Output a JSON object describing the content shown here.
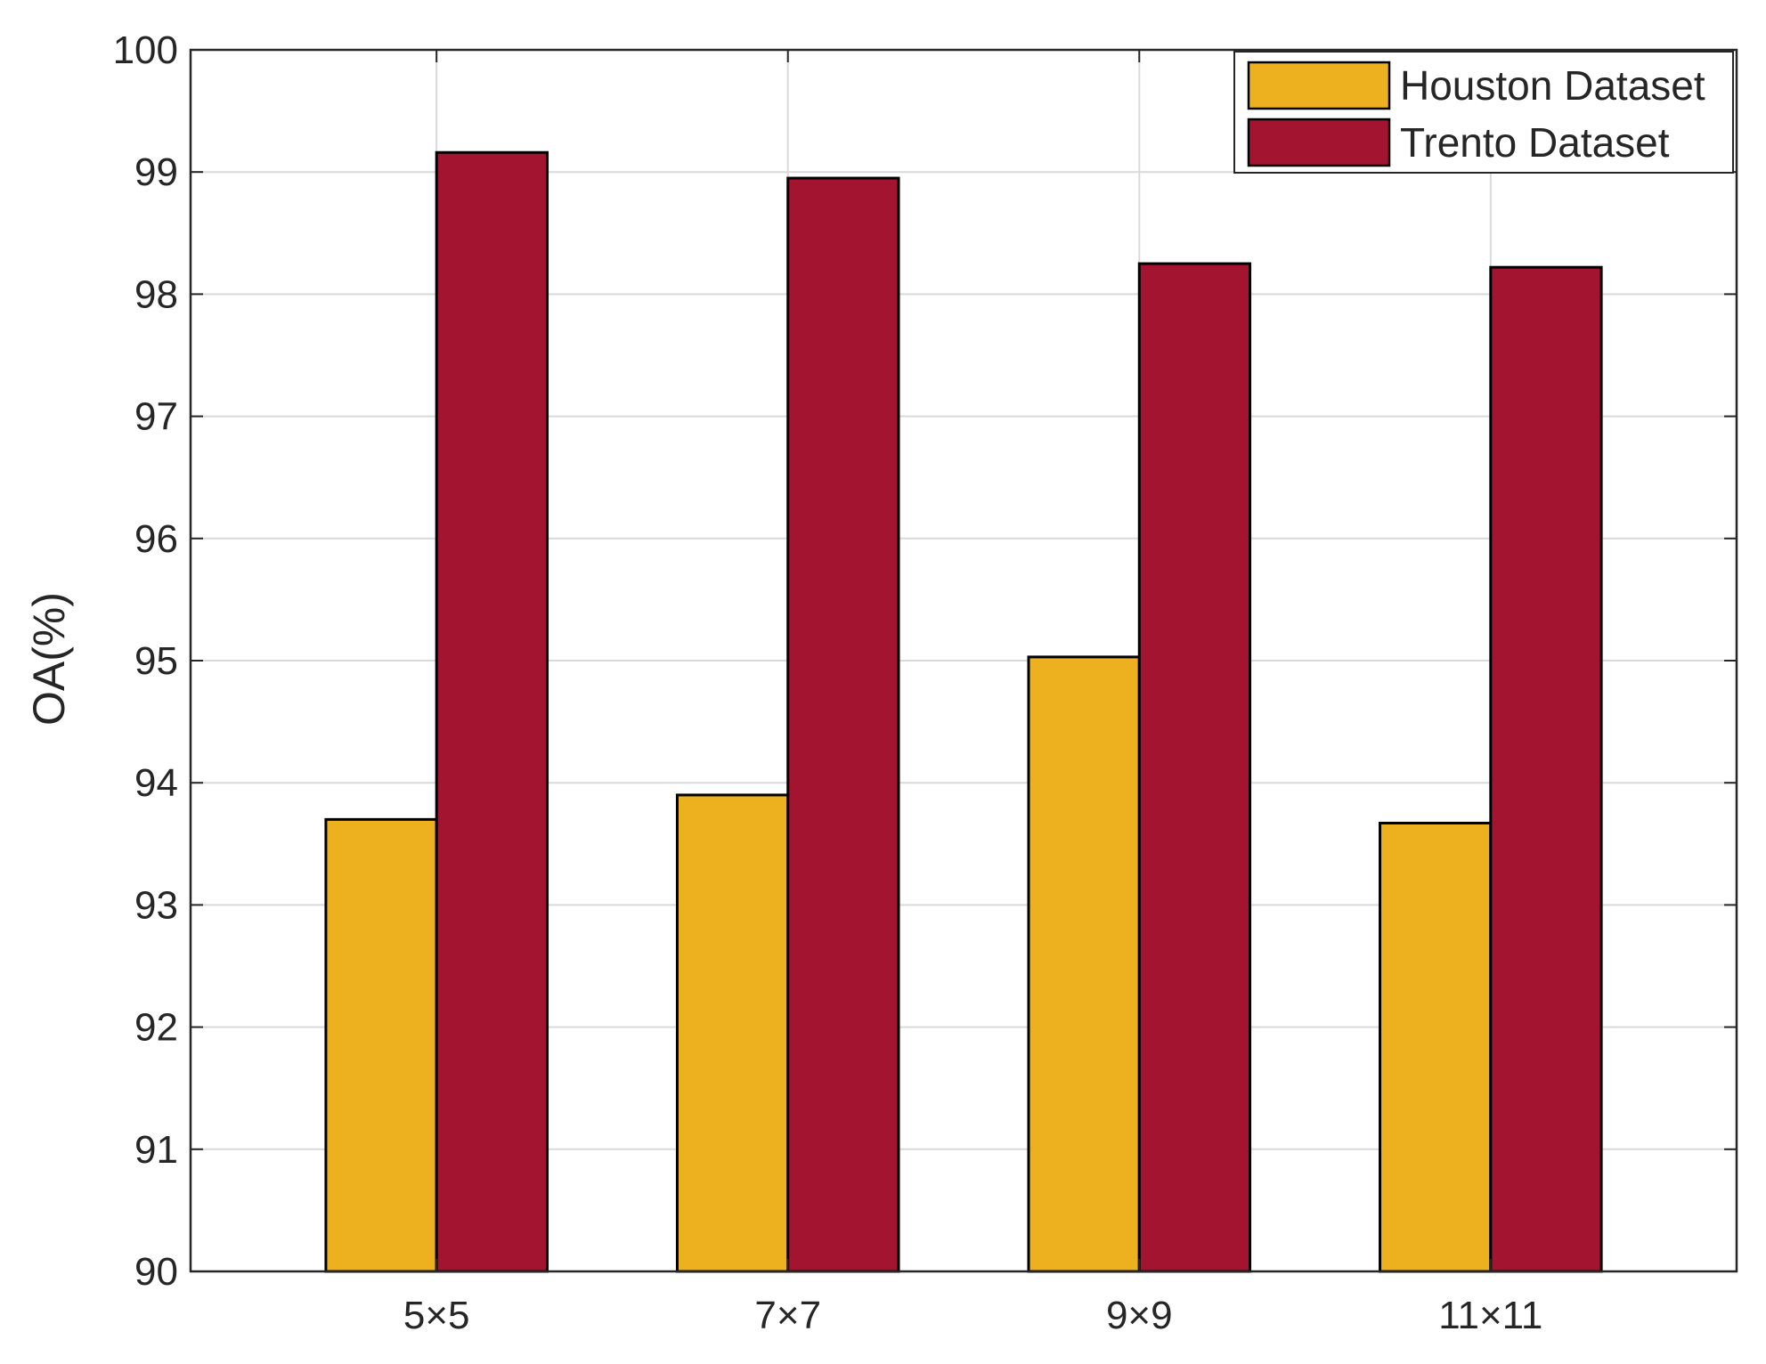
{
  "chart_data": {
    "type": "bar",
    "title": "",
    "xlabel": "",
    "ylabel": "OA(%)",
    "categories": [
      "5×5",
      "7×7",
      "9×9",
      "11×11"
    ],
    "ylim": [
      90,
      100
    ],
    "yticks": [
      90,
      91,
      92,
      93,
      94,
      95,
      96,
      97,
      98,
      99,
      100
    ],
    "grid": true,
    "legend_position": "top-right",
    "series": [
      {
        "name": "Houston Dataset",
        "color": "#EDB120",
        "values": [
          93.7,
          93.9,
          95.03,
          93.67
        ]
      },
      {
        "name": "Trento Dataset",
        "color": "#A2142F",
        "values": [
          99.16,
          98.95,
          98.25,
          98.22
        ]
      }
    ]
  }
}
